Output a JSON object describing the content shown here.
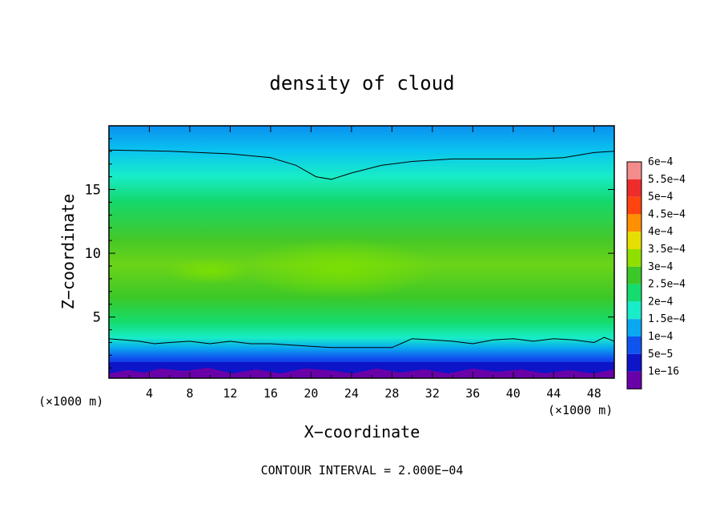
{
  "chart_data": {
    "type": "heatmap",
    "title": "density of cloud",
    "xlabel": "X−coordinate",
    "ylabel": "Z−coordinate",
    "x_unit_left": "(×1000 m)",
    "x_unit_right": "(×1000 m)",
    "footer": "CONTOUR INTERVAL = 2.000E−04",
    "xlim": [
      0,
      50
    ],
    "ylim": [
      0.2,
      20
    ],
    "x_ticks": [
      "4",
      "8",
      "12",
      "16",
      "20",
      "24",
      "28",
      "32",
      "36",
      "40",
      "44",
      "48"
    ],
    "x_tick_values": [
      4,
      8,
      12,
      16,
      20,
      24,
      28,
      32,
      36,
      40,
      44,
      48
    ],
    "y_ticks": [
      "5",
      "10",
      "15"
    ],
    "y_tick_values": [
      5,
      10,
      15
    ],
    "colorbar": {
      "labels": [
        "6e−4",
        "5.5e−4",
        "5e−4",
        "4.5e−4",
        "4e−4",
        "3.5e−4",
        "3e−4",
        "2.5e−4",
        "2e−4",
        "1.5e−4",
        "1e−4",
        "5e−5",
        "1e−16"
      ],
      "colors": [
        "#f48c8c",
        "#ee2c2c",
        "#ff4410",
        "#ff9000",
        "#e6de00",
        "#8fe000",
        "#3cc828",
        "#14dc6e",
        "#18ecc8",
        "#0aa8f0",
        "#1054f0",
        "#0e14c8",
        "#6a00a8"
      ]
    },
    "contour_lines": [
      {
        "level": "2e−4",
        "points": [
          [
            0,
            18.1
          ],
          [
            6,
            18.0
          ],
          [
            12,
            17.8
          ],
          [
            16,
            17.5
          ],
          [
            18.5,
            16.9
          ],
          [
            20.5,
            16.0
          ],
          [
            22,
            15.8
          ],
          [
            24,
            16.3
          ],
          [
            27,
            16.9
          ],
          [
            30,
            17.2
          ],
          [
            34,
            17.4
          ],
          [
            38,
            17.4
          ],
          [
            42,
            17.4
          ],
          [
            45,
            17.5
          ],
          [
            48,
            17.9
          ],
          [
            50,
            18.0
          ]
        ]
      },
      {
        "level": "1e−4",
        "points": [
          [
            0,
            3.3
          ],
          [
            3,
            3.1
          ],
          [
            4.5,
            2.9
          ],
          [
            6,
            3.0
          ],
          [
            8,
            3.1
          ],
          [
            10,
            2.9
          ],
          [
            12,
            3.1
          ],
          [
            14,
            2.9
          ],
          [
            16,
            2.9
          ],
          [
            18,
            2.8
          ],
          [
            20,
            2.7
          ],
          [
            22,
            2.6
          ],
          [
            24,
            2.6
          ],
          [
            26,
            2.6
          ],
          [
            28,
            2.6
          ],
          [
            30,
            3.3
          ],
          [
            32,
            3.2
          ],
          [
            34,
            3.1
          ],
          [
            36,
            2.9
          ],
          [
            38,
            3.2
          ],
          [
            40,
            3.3
          ],
          [
            42,
            3.1
          ],
          [
            44,
            3.3
          ],
          [
            46,
            3.2
          ],
          [
            48,
            3.0
          ],
          [
            49,
            3.4
          ],
          [
            50,
            3.1
          ]
        ]
      }
    ]
  }
}
